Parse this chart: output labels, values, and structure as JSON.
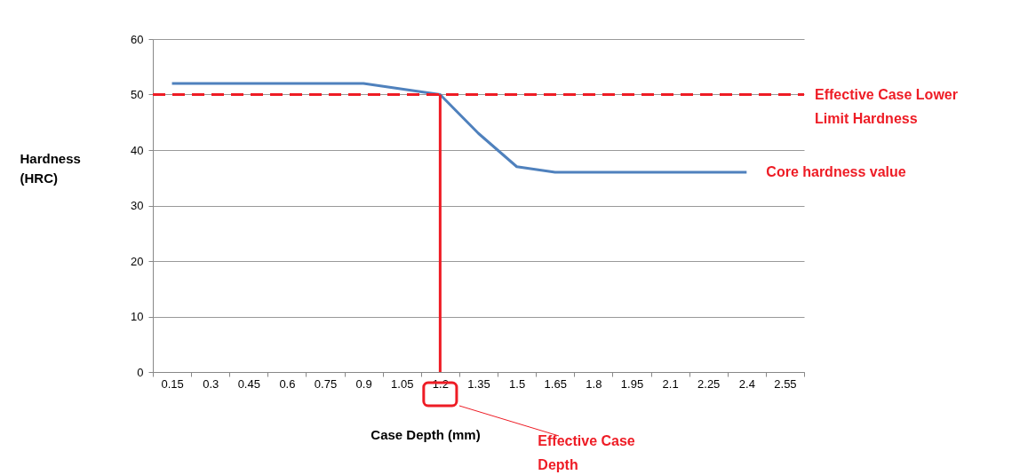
{
  "chart_data": {
    "type": "line",
    "xlabel": "Case Depth (mm)",
    "ylabel": "Hardness (HRC)",
    "categories": [
      "0.15",
      "0.3",
      "0.45",
      "0.6",
      "0.75",
      "0.9",
      "1.05",
      "1.2",
      "1.35",
      "1.5",
      "1.65",
      "1.8",
      "1.95",
      "2.1",
      "2.25",
      "2.4",
      "2.55"
    ],
    "series": [
      {
        "color": "#4f81bd",
        "values": [
          52,
          52,
          52,
          52,
          52,
          52,
          51,
          50,
          43,
          37,
          36,
          36,
          36,
          36,
          36,
          36,
          null
        ]
      }
    ],
    "ylim": [
      0,
      60
    ],
    "yticks": [
      0,
      10,
      20,
      30,
      40,
      50,
      60
    ],
    "grid": "y",
    "ref_lines": [
      {
        "axis": "y",
        "value": 50,
        "label": "Effective Case Lower Limit Hardness",
        "color": "#ee1c25",
        "line_style": "dashed"
      },
      {
        "axis": "x",
        "value": "1.2",
        "label": "Effective Case Depth",
        "color": "#ee1c25",
        "line_style": "solid"
      }
    ],
    "annotations": [
      {
        "text": "Core hardness value",
        "x": "2.4",
        "y": 36
      }
    ]
  }
}
